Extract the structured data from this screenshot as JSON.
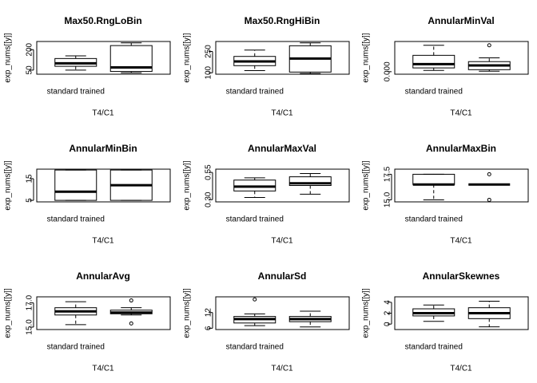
{
  "chart_data": [
    {
      "type": "box",
      "title": "Max50.RngLoBin",
      "ylabel": "exp_nums[[y]]",
      "xlabel": "T4/C1",
      "categories": [
        "standard trained",
        null
      ],
      "ylim": [
        20,
        260
      ],
      "yticks": [
        50,
        200
      ],
      "boxes": [
        {
          "min": 50,
          "q1": 78,
          "median": 100,
          "q3": 135,
          "max": 155,
          "outliers": []
        },
        {
          "min": 30,
          "q1": 40,
          "median": 70,
          "q3": 230,
          "max": 250,
          "outliers": []
        }
      ]
    },
    {
      "type": "box",
      "title": "Max50.RngHiBin",
      "ylabel": "exp_nums[[y]]",
      "xlabel": "T4/C1",
      "categories": [
        "standard trained",
        null
      ],
      "ylim": [
        90,
        320
      ],
      "yticks": [
        100,
        250
      ],
      "boxes": [
        {
          "min": 115,
          "q1": 150,
          "median": 180,
          "q3": 215,
          "max": 260,
          "outliers": []
        },
        {
          "min": 95,
          "q1": 105,
          "median": 200,
          "q3": 290,
          "max": 310,
          "outliers": []
        }
      ]
    },
    {
      "type": "box",
      "title": "AnnularMinVal",
      "ylabel": "exp_nums[[y]]",
      "xlabel": "T4/C1",
      "categories": [
        "standard trained",
        null
      ],
      "ylim": [
        -0.001,
        0.012
      ],
      "yticks": [
        {
          "value": 0,
          "label": "0.000"
        }
      ],
      "boxes": [
        {
          "min": 0.0005,
          "q1": 0.0015,
          "median": 0.003,
          "q3": 0.0065,
          "max": 0.0105,
          "outliers": []
        },
        {
          "min": 0.0002,
          "q1": 0.0008,
          "median": 0.0025,
          "q3": 0.004,
          "max": 0.0055,
          "outliers": [
            0.0105
          ]
        }
      ]
    },
    {
      "type": "box",
      "title": "AnnularMinBin",
      "ylabel": "exp_nums[[y]]",
      "xlabel": "T4/C1",
      "categories": [
        "standard trained",
        null
      ],
      "ylim": [
        4.3,
        19.4
      ],
      "yticks": [
        5,
        15
      ],
      "boxes": [
        {
          "min": 5,
          "q1": 5,
          "median": 9,
          "q3": 19,
          "max": 19,
          "outliers": []
        },
        {
          "min": 5,
          "q1": 5,
          "median": 12,
          "q3": 19,
          "max": 19,
          "outliers": []
        }
      ]
    },
    {
      "type": "box",
      "title": "AnnularMaxVal",
      "ylabel": "exp_nums[[y]]",
      "xlabel": "T4/C1",
      "categories": [
        "standard trained",
        null
      ],
      "ylim": [
        0.28,
        0.58
      ],
      "yticks": [
        {
          "value": 0.3,
          "label": "0.30"
        },
        0.55
      ],
      "boxes": [
        {
          "min": 0.32,
          "q1": 0.38,
          "median": 0.42,
          "q3": 0.48,
          "max": 0.5,
          "outliers": []
        },
        {
          "min": 0.35,
          "q1": 0.43,
          "median": 0.45,
          "q3": 0.51,
          "max": 0.54,
          "outliers": []
        }
      ]
    },
    {
      "type": "box",
      "title": "AnnularMaxBin",
      "ylabel": "exp_nums[[y]]",
      "xlabel": "T4/C1",
      "categories": [
        "standard trained",
        null
      ],
      "ylim": [
        14.8,
        18.0
      ],
      "yticks": [
        {
          "value": 15,
          "label": "15.0"
        },
        17.5
      ],
      "boxes": [
        {
          "min": 15,
          "q1": 16.5,
          "median": 16.5,
          "q3": 17.5,
          "max": 17.5,
          "outliers": []
        },
        {
          "min": 16.5,
          "q1": 16.5,
          "median": 16.5,
          "q3": 16.5,
          "max": 16.5,
          "outliers": [
            15,
            17.5
          ]
        }
      ]
    },
    {
      "type": "box",
      "title": "AnnularAvg",
      "ylabel": "exp_nums[[y]]",
      "xlabel": "T4/C1",
      "categories": [
        "standard trained",
        null
      ],
      "ylim": [
        14.8,
        17.5
      ],
      "yticks": [
        {
          "value": 15,
          "label": "15.0"
        },
        {
          "value": 17,
          "label": "17.0"
        }
      ],
      "boxes": [
        {
          "min": 15.2,
          "q1": 16.0,
          "median": 16.3,
          "q3": 16.6,
          "max": 17.1,
          "outliers": []
        },
        {
          "min": 16.0,
          "q1": 16.1,
          "median": 16.2,
          "q3": 16.4,
          "max": 16.6,
          "outliers": [
            15.3,
            17.2
          ]
        }
      ]
    },
    {
      "type": "box",
      "title": "AnnularSd",
      "ylabel": "exp_nums[[y]]",
      "xlabel": "T4/C1",
      "categories": [
        "standard trained",
        null
      ],
      "ylim": [
        5.5,
        18
      ],
      "yticks": [
        6,
        12
      ],
      "boxes": [
        {
          "min": 7,
          "q1": 8,
          "median": 9.5,
          "q3": 10.5,
          "max": 11.5,
          "outliers": [
            17
          ]
        },
        {
          "min": 6.5,
          "q1": 8.5,
          "median": 9.5,
          "q3": 10.5,
          "max": 12.5,
          "outliers": []
        }
      ]
    },
    {
      "type": "box",
      "title": "AnnularSkewnes",
      "ylabel": "exp_nums[[y]]",
      "xlabel": "T4/C1",
      "categories": [
        "standard trained",
        null
      ],
      "ylim": [
        -1,
        5
      ],
      "yticks": [
        0,
        2,
        4
      ],
      "boxes": [
        {
          "min": 0.5,
          "q1": 1.5,
          "median": 2,
          "q3": 2.8,
          "max": 3.5,
          "outliers": []
        },
        {
          "min": -0.5,
          "q1": 1,
          "median": 2,
          "q3": 3,
          "max": 4.2,
          "outliers": []
        }
      ]
    }
  ]
}
